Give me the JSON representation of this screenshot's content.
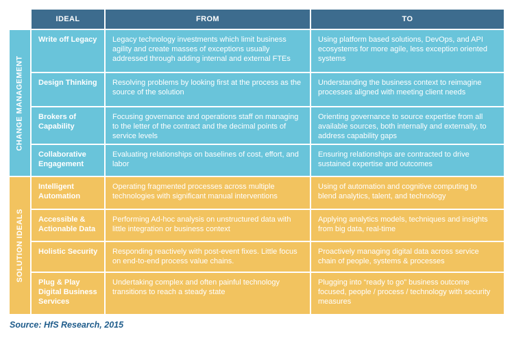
{
  "header": {
    "ideal": "IDEAL",
    "from": "FROM",
    "to": "TO"
  },
  "colors": {
    "header_bg": "#3d6c8e",
    "change_management_bg": "#69c4da",
    "solution_ideals_bg": "#f2c35f",
    "text": "#ffffff",
    "source_text": "#1f5c8b"
  },
  "sections": [
    {
      "label": "CHANGE MANAGEMENT",
      "rows": [
        {
          "ideal": "Write off Legacy",
          "from": "Legacy technology investments which limit business agility and create masses of exceptions usually addressed through adding internal and external FTEs",
          "to": "Using platform based solutions, DevOps, and API ecosystems for more agile, less exception oriented systems"
        },
        {
          "ideal": "Design Thinking",
          "from": "Resolving problems by looking first at the process as the source of the solution",
          "to": "Understanding the business context to reimagine processes aligned with meeting client needs"
        },
        {
          "ideal": "Brokers of Capability",
          "from": "Focusing governance and operations staff on managing to the letter of the contract and the decimal points of service levels",
          "to": "Orienting governance to source expertise from all available sources, both internally and externally, to address capability gaps"
        },
        {
          "ideal": "Collaborative Engagement",
          "from": "Evaluating relationships on baselines of cost, effort, and labor",
          "to": "Ensuring relationships are contracted to drive sustained expertise and outcomes"
        }
      ]
    },
    {
      "label": "SOLUTION IDEALS",
      "rows": [
        {
          "ideal": "Intelligent Automation",
          "from": "Operating fragmented processes across multiple technologies with significant manual interventions",
          "to": "Using of automation and cognitive computing to blend analytics, talent, and technology"
        },
        {
          "ideal": "Accessible & Actionable Data",
          "from": "Performing Ad-hoc analysis on unstructured data with little integration or business context",
          "to": "Applying analytics models, techniques and insights from big data, real-time"
        },
        {
          "ideal": "Holistic Security",
          "from": "Responding reactively with post-event fixes. Little focus on end-to-end process value chains.",
          "to": "Proactively managing digital data across service chain of people, systems & processes"
        },
        {
          "ideal": "Plug & Play Digital Business Services",
          "from": "Undertaking complex and often painful technology transitions to reach a steady state",
          "to": "Plugging into “ready to go” business outcome focused, people / process / technology with security measures"
        }
      ]
    }
  ],
  "footer": {
    "source": "Source: HfS Research, 2015"
  }
}
